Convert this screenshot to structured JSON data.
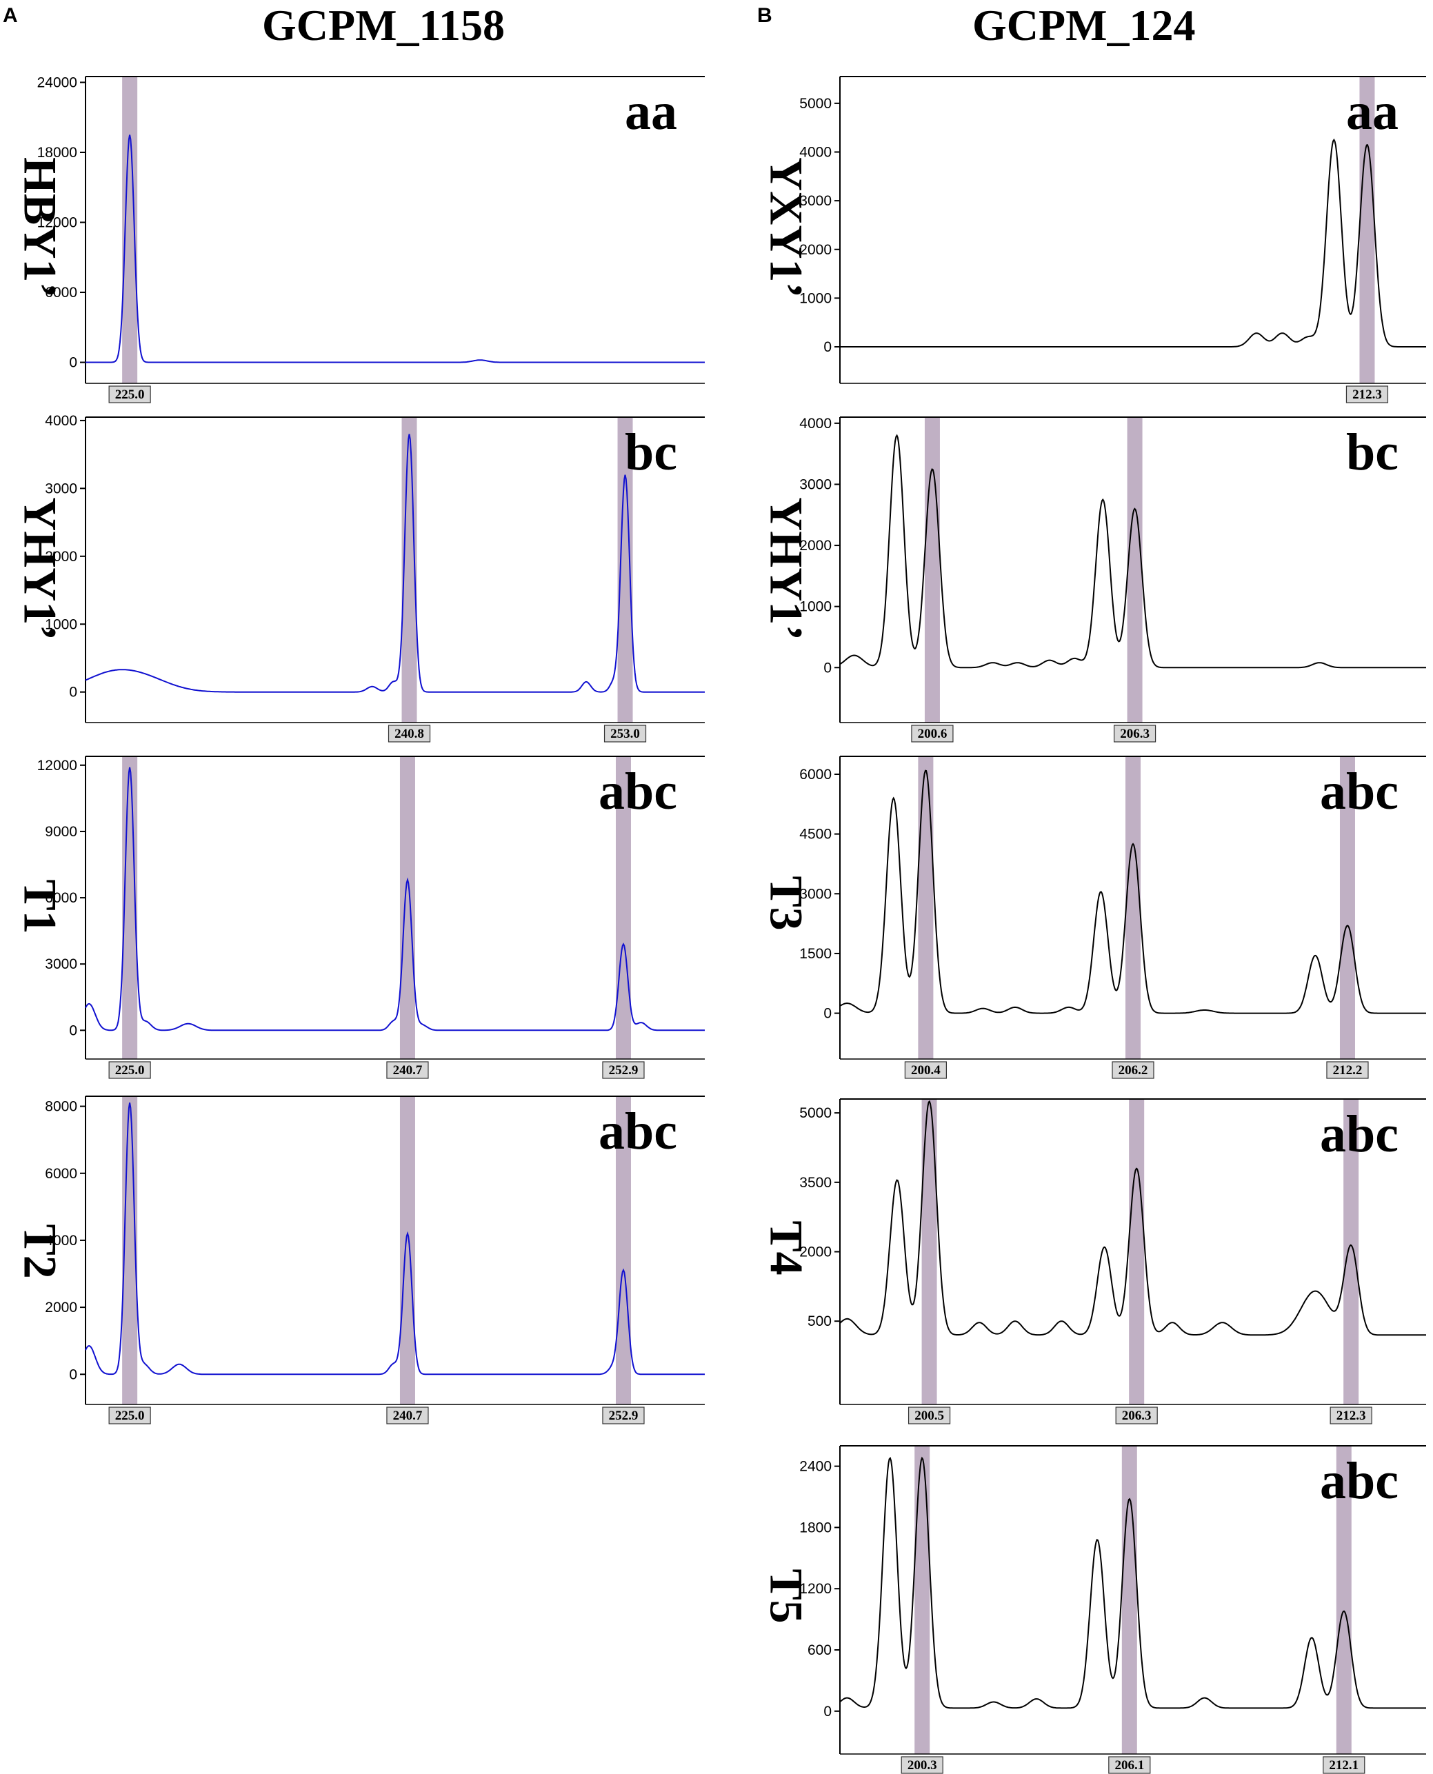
{
  "figure": {
    "panel_letters": [
      "A",
      "B"
    ],
    "column_titles": [
      "GCPM_1158",
      "GCPM_124"
    ],
    "colors": {
      "trace_A": "#1010d0",
      "trace_B": "#000000",
      "highlight": "#c0b0c4",
      "label_box": "#d8d8d8"
    }
  },
  "chart_data": [
    {
      "type": "line",
      "panel": "A",
      "sample": "HBY1’",
      "genotype": "aa",
      "xlim": [
        222.5,
        257.5
      ],
      "ylim": [
        -1800,
        24500
      ],
      "yticks": [
        0,
        6000,
        12000,
        18000,
        24000
      ],
      "baseline": 0,
      "peaks": [
        {
          "x": 225.0,
          "y": 19500,
          "w": 0.25
        },
        {
          "x": 244.8,
          "y": 200,
          "w": 0.4
        }
      ],
      "markers": [
        {
          "x": 225.0,
          "label": "225.0"
        }
      ]
    },
    {
      "type": "line",
      "panel": "A",
      "sample": "YHY1’",
      "genotype": "bc",
      "xlim": [
        222.5,
        257.5
      ],
      "ylim": [
        -450,
        4050
      ],
      "yticks": [
        0,
        1000,
        2000,
        3000,
        4000
      ],
      "baseline": 0,
      "peaks": [
        {
          "x": 223.8,
          "y": 230,
          "w": 1.5
        },
        {
          "x": 225.8,
          "y": 180,
          "w": 1.5
        },
        {
          "x": 238.7,
          "y": 80,
          "w": 0.3
        },
        {
          "x": 239.9,
          "y": 150,
          "w": 0.25
        },
        {
          "x": 240.8,
          "y": 3800,
          "w": 0.25
        },
        {
          "x": 250.8,
          "y": 150,
          "w": 0.25
        },
        {
          "x": 252.3,
          "y": 120,
          "w": 0.2
        },
        {
          "x": 253.0,
          "y": 3200,
          "w": 0.25
        }
      ],
      "markers": [
        {
          "x": 240.8,
          "label": "240.8"
        },
        {
          "x": 253.0,
          "label": "253.0"
        }
      ]
    },
    {
      "type": "line",
      "panel": "A",
      "sample": "T1",
      "genotype": "abc",
      "xlim": [
        222.5,
        257.5
      ],
      "ylim": [
        -1300,
        12400
      ],
      "yticks": [
        0,
        3000,
        6000,
        9000,
        12000
      ],
      "baseline": 0,
      "peaks": [
        {
          "x": 222.7,
          "y": 1200,
          "w": 0.35
        },
        {
          "x": 225.0,
          "y": 11900,
          "w": 0.25
        },
        {
          "x": 225.9,
          "y": 400,
          "w": 0.3
        },
        {
          "x": 228.3,
          "y": 300,
          "w": 0.45
        },
        {
          "x": 239.9,
          "y": 400,
          "w": 0.25
        },
        {
          "x": 240.7,
          "y": 6800,
          "w": 0.25
        },
        {
          "x": 241.5,
          "y": 250,
          "w": 0.3
        },
        {
          "x": 252.9,
          "y": 3900,
          "w": 0.25
        },
        {
          "x": 253.9,
          "y": 350,
          "w": 0.3
        }
      ],
      "markers": [
        {
          "x": 225.0,
          "label": "225.0"
        },
        {
          "x": 240.7,
          "label": "240.7"
        },
        {
          "x": 252.9,
          "label": "252.9"
        }
      ]
    },
    {
      "type": "line",
      "panel": "A",
      "sample": "T2",
      "genotype": "abc",
      "xlim": [
        222.5,
        257.5
      ],
      "ylim": [
        -900,
        8300
      ],
      "yticks": [
        0,
        2000,
        4000,
        6000,
        8000
      ],
      "baseline": 0,
      "peaks": [
        {
          "x": 222.7,
          "y": 850,
          "w": 0.35
        },
        {
          "x": 225.0,
          "y": 8100,
          "w": 0.25
        },
        {
          "x": 225.8,
          "y": 300,
          "w": 0.3
        },
        {
          "x": 227.8,
          "y": 300,
          "w": 0.4
        },
        {
          "x": 239.9,
          "y": 300,
          "w": 0.25
        },
        {
          "x": 240.7,
          "y": 4200,
          "w": 0.25
        },
        {
          "x": 252.3,
          "y": 200,
          "w": 0.25
        },
        {
          "x": 252.9,
          "y": 3100,
          "w": 0.25
        }
      ],
      "markers": [
        {
          "x": 225.0,
          "label": "225.0"
        },
        {
          "x": 240.7,
          "label": "240.7"
        },
        {
          "x": 252.9,
          "label": "252.9"
        }
      ]
    },
    {
      "type": "line",
      "panel": "B",
      "sample": "YXY1’",
      "genotype": "aa",
      "xlim": [
        198.0,
        213.9
      ],
      "ylim": [
        -750,
        5550
      ],
      "yticks": [
        0,
        1000,
        2000,
        3000,
        4000,
        5000
      ],
      "baseline": 0,
      "peaks": [
        {
          "x": 209.3,
          "y": 280,
          "w": 0.2
        },
        {
          "x": 210.0,
          "y": 280,
          "w": 0.2
        },
        {
          "x": 210.7,
          "y": 200,
          "w": 0.2
        },
        {
          "x": 211.4,
          "y": 4250,
          "w": 0.2
        },
        {
          "x": 212.3,
          "y": 4150,
          "w": 0.2
        }
      ],
      "markers": [
        {
          "x": 212.3,
          "label": "212.3"
        }
      ]
    },
    {
      "type": "line",
      "panel": "B",
      "sample": "YHY1’",
      "genotype": "bc",
      "xlim": [
        198.0,
        214.5
      ],
      "ylim": [
        -900,
        4100
      ],
      "yticks": [
        0,
        1000,
        2000,
        3000,
        4000
      ],
      "baseline": 0,
      "peaks": [
        {
          "x": 198.4,
          "y": 200,
          "w": 0.25
        },
        {
          "x": 199.6,
          "y": 3800,
          "w": 0.2
        },
        {
          "x": 200.6,
          "y": 3250,
          "w": 0.2
        },
        {
          "x": 202.3,
          "y": 80,
          "w": 0.2
        },
        {
          "x": 203.0,
          "y": 80,
          "w": 0.2
        },
        {
          "x": 203.9,
          "y": 120,
          "w": 0.2
        },
        {
          "x": 204.6,
          "y": 150,
          "w": 0.2
        },
        {
          "x": 205.4,
          "y": 2750,
          "w": 0.2
        },
        {
          "x": 206.3,
          "y": 2600,
          "w": 0.2
        },
        {
          "x": 211.5,
          "y": 80,
          "w": 0.2
        }
      ],
      "markers": [
        {
          "x": 200.6,
          "label": "200.6"
        },
        {
          "x": 206.3,
          "label": "206.3"
        }
      ]
    },
    {
      "type": "line",
      "panel": "B",
      "sample": "T3",
      "genotype": "abc",
      "xlim": [
        198.0,
        214.4
      ],
      "ylim": [
        -1150,
        6450
      ],
      "yticks": [
        0,
        1500,
        3000,
        4500,
        6000
      ],
      "baseline": 0,
      "peaks": [
        {
          "x": 198.2,
          "y": 250,
          "w": 0.25
        },
        {
          "x": 199.5,
          "y": 5400,
          "w": 0.2
        },
        {
          "x": 200.4,
          "y": 6100,
          "w": 0.2
        },
        {
          "x": 202.0,
          "y": 120,
          "w": 0.2
        },
        {
          "x": 202.9,
          "y": 150,
          "w": 0.2
        },
        {
          "x": 204.4,
          "y": 150,
          "w": 0.2
        },
        {
          "x": 205.3,
          "y": 3050,
          "w": 0.2
        },
        {
          "x": 206.2,
          "y": 4250,
          "w": 0.2
        },
        {
          "x": 208.2,
          "y": 80,
          "w": 0.25
        },
        {
          "x": 211.3,
          "y": 1450,
          "w": 0.2
        },
        {
          "x": 212.2,
          "y": 2200,
          "w": 0.2
        }
      ],
      "markers": [
        {
          "x": 200.4,
          "label": "200.4"
        },
        {
          "x": 206.2,
          "label": "206.2"
        },
        {
          "x": 212.2,
          "label": "212.2"
        }
      ]
    },
    {
      "type": "line",
      "panel": "B",
      "sample": "T4",
      "genotype": "abc",
      "xlim": [
        198.0,
        214.4
      ],
      "ylim": [
        -1300,
        5300
      ],
      "yticks": [
        500,
        2000,
        3500,
        5000
      ],
      "baseline": 200,
      "peaks": [
        {
          "x": 198.2,
          "y": 350,
          "w": 0.25
        },
        {
          "x": 199.6,
          "y": 3350,
          "w": 0.2
        },
        {
          "x": 200.5,
          "y": 5050,
          "w": 0.2
        },
        {
          "x": 201.9,
          "y": 270,
          "w": 0.2
        },
        {
          "x": 202.9,
          "y": 300,
          "w": 0.2
        },
        {
          "x": 204.2,
          "y": 300,
          "w": 0.2
        },
        {
          "x": 205.4,
          "y": 1900,
          "w": 0.2
        },
        {
          "x": 206.3,
          "y": 3600,
          "w": 0.2
        },
        {
          "x": 207.3,
          "y": 270,
          "w": 0.2
        },
        {
          "x": 208.7,
          "y": 270,
          "w": 0.25
        },
        {
          "x": 211.3,
          "y": 950,
          "w": 0.4
        },
        {
          "x": 212.3,
          "y": 1900,
          "w": 0.2
        }
      ],
      "markers": [
        {
          "x": 200.5,
          "label": "200.5"
        },
        {
          "x": 206.3,
          "label": "206.3"
        },
        {
          "x": 212.3,
          "label": "212.3"
        }
      ]
    },
    {
      "type": "line",
      "panel": "B",
      "sample": "T5",
      "genotype": "abc",
      "xlim": [
        198.0,
        214.4
      ],
      "ylim": [
        -420,
        2600
      ],
      "yticks": [
        0,
        600,
        1200,
        1800,
        2400
      ],
      "baseline": 30,
      "peaks": [
        {
          "x": 198.2,
          "y": 100,
          "w": 0.2
        },
        {
          "x": 199.4,
          "y": 2450,
          "w": 0.2
        },
        {
          "x": 200.3,
          "y": 2450,
          "w": 0.2
        },
        {
          "x": 202.3,
          "y": 60,
          "w": 0.2
        },
        {
          "x": 203.5,
          "y": 90,
          "w": 0.2
        },
        {
          "x": 205.2,
          "y": 1650,
          "w": 0.2
        },
        {
          "x": 206.1,
          "y": 2050,
          "w": 0.2
        },
        {
          "x": 208.2,
          "y": 100,
          "w": 0.2
        },
        {
          "x": 211.2,
          "y": 690,
          "w": 0.2
        },
        {
          "x": 212.1,
          "y": 950,
          "w": 0.2
        }
      ],
      "markers": [
        {
          "x": 200.3,
          "label": "200.3"
        },
        {
          "x": 206.1,
          "label": "206.1"
        },
        {
          "x": 212.1,
          "label": "212.1"
        }
      ]
    }
  ]
}
